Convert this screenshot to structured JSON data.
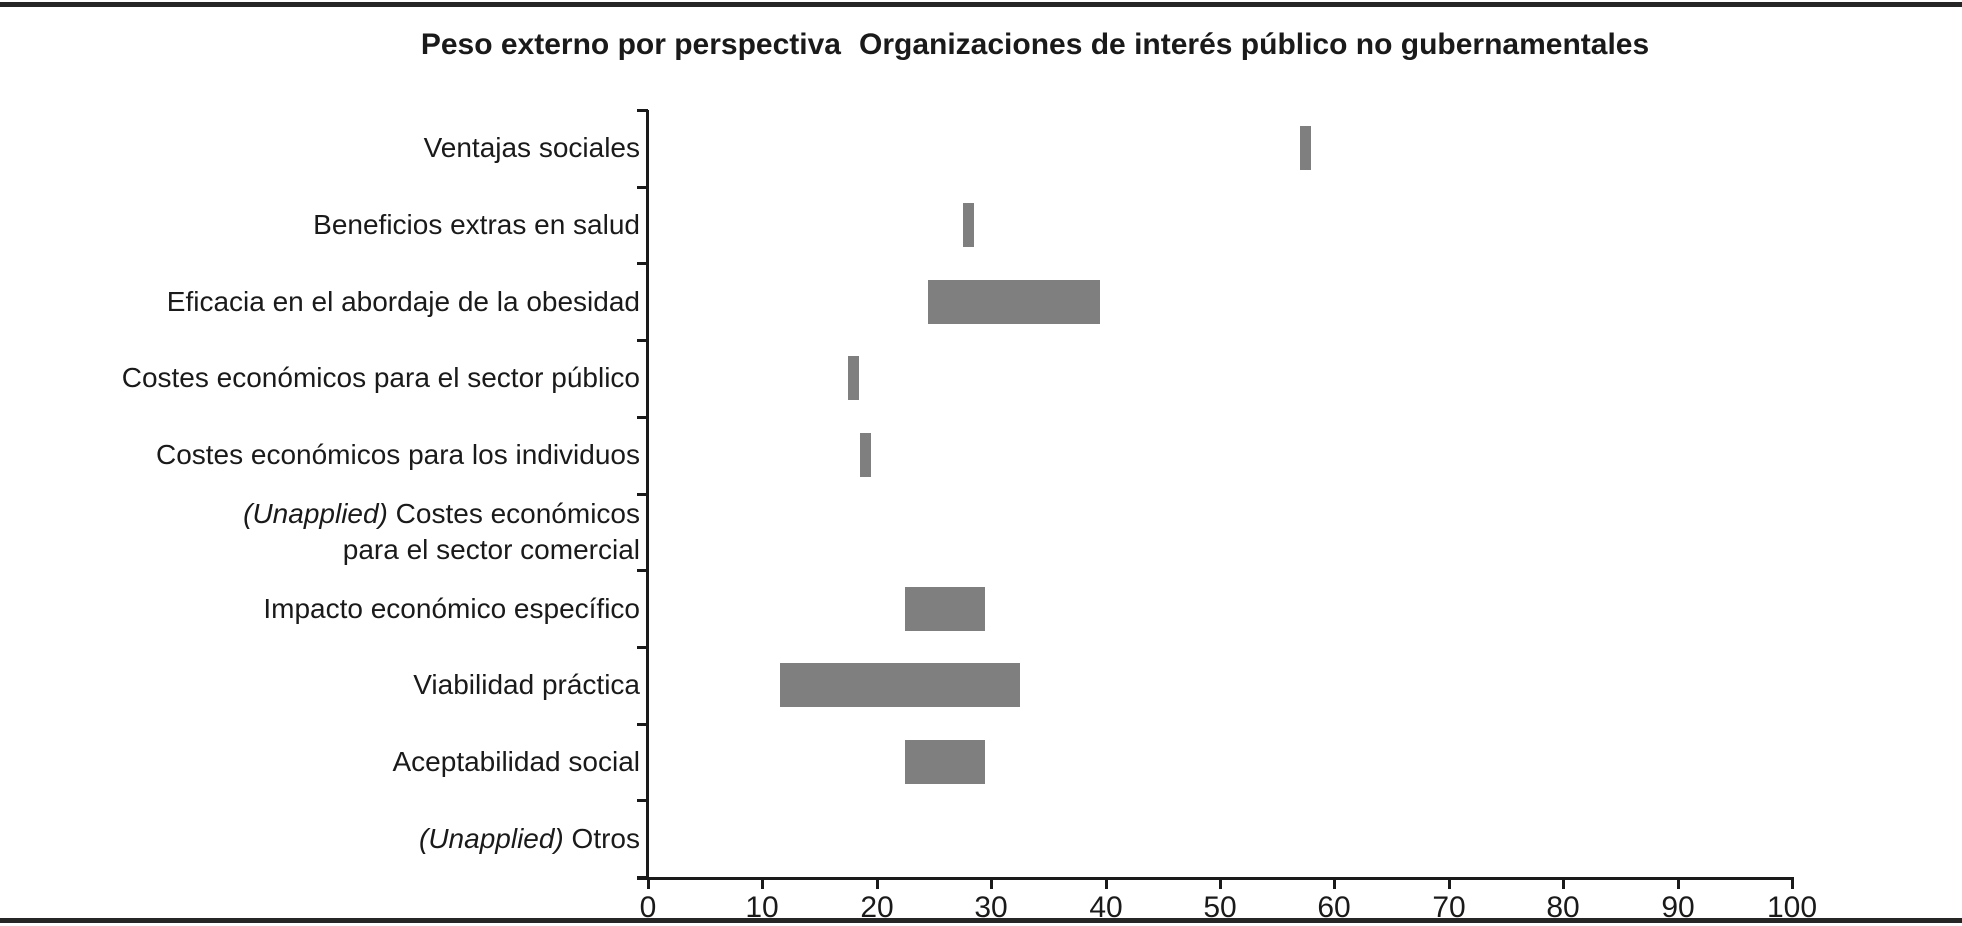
{
  "figure": {
    "title_part1": "Peso externo por perspectiva",
    "title_part2": "Organizaciones de interés público no gubernamentales"
  },
  "page": {
    "background": "#ffffff",
    "rule_color": "#262626"
  },
  "chart_data": {
    "type": "bar",
    "subtype": "horizontal-range-bars",
    "title": "Peso externo por perspectiva  Organizaciones de interés público no gubernamentales",
    "xlabel": "",
    "ylabel": "",
    "xlim": [
      0,
      100
    ],
    "x_ticks": [
      0,
      10,
      20,
      30,
      40,
      50,
      60,
      70,
      80,
      90,
      100
    ],
    "grid": "off",
    "legend": "none",
    "bar_color": "#7f7f7f",
    "axis_color": "#1a1a1a",
    "text_color": "#1a1a1a",
    "rows": [
      {
        "label": "Ventajas sociales",
        "label_lines": [
          {
            "italic": "",
            "text": "Ventajas sociales"
          }
        ],
        "values": [
          57,
          58
        ]
      },
      {
        "label": "Beneficios extras en salud",
        "label_lines": [
          {
            "italic": "",
            "text": "Beneficios extras en salud"
          }
        ],
        "values": [
          27.5,
          28.5
        ]
      },
      {
        "label": "Eficacia en el abordaje de la obesidad",
        "label_lines": [
          {
            "italic": "",
            "text": "Eficacia en el abordaje de la obesidad"
          }
        ],
        "values": [
          24.5,
          39.5
        ]
      },
      {
        "label": "Costes económicos para el sector público",
        "label_lines": [
          {
            "italic": "",
            "text": "Costes económicos para el sector público"
          }
        ],
        "values": [
          17.5,
          18.5
        ]
      },
      {
        "label": "Costes económicos para los individuos",
        "label_lines": [
          {
            "italic": "",
            "text": "Costes económicos para los individuos"
          }
        ],
        "values": [
          18.5,
          19.5
        ]
      },
      {
        "label": "(Unapplied) Costes económicos para el sector comercial",
        "label_lines": [
          {
            "italic": "(Unapplied)",
            "text": " Costes económicos"
          },
          {
            "italic": "",
            "text": "para el sector comercial"
          }
        ],
        "values": null
      },
      {
        "label": "Impacto económico específico",
        "label_lines": [
          {
            "italic": "",
            "text": "Impacto económico específico"
          }
        ],
        "values": [
          22.5,
          29.5
        ]
      },
      {
        "label": "Viabilidad práctica",
        "label_lines": [
          {
            "italic": "",
            "text": "Viabilidad práctica"
          }
        ],
        "values": [
          11.5,
          32.5
        ]
      },
      {
        "label": "Aceptabilidad social",
        "label_lines": [
          {
            "italic": "",
            "text": "Aceptabilidad social"
          }
        ],
        "values": [
          22.5,
          29.5
        ]
      },
      {
        "label": "(Unapplied) Otros",
        "label_lines": [
          {
            "italic": "(Unapplied)",
            "text": " Otros"
          }
        ],
        "values": null
      }
    ]
  }
}
